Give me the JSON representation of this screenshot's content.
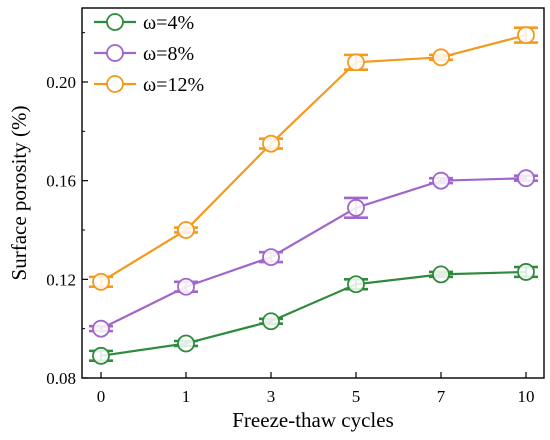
{
  "chart_data": {
    "type": "line",
    "xlabel": "Freeze-thaw cycles",
    "ylabel": "Surface porosity (%)",
    "categories": [
      "0",
      "1",
      "3",
      "5",
      "7",
      "10"
    ],
    "ylim": [
      0.08,
      0.23
    ],
    "yticks": [
      "0.08",
      "0.12",
      "0.16",
      "0.20"
    ],
    "grid": false,
    "legend_position": "top-left",
    "series": [
      {
        "name": "ω=4%",
        "color": "#2e8b3e",
        "values": [
          0.089,
          0.094,
          0.103,
          0.118,
          0.122,
          0.123
        ],
        "errors": [
          0.002,
          0.001,
          0.001,
          0.002,
          0.001,
          0.002
        ]
      },
      {
        "name": "ω=8%",
        "color": "#a066cc",
        "values": [
          0.1,
          0.117,
          0.129,
          0.149,
          0.16,
          0.161
        ],
        "errors": [
          0.001,
          0.002,
          0.002,
          0.004,
          0.001,
          0.001
        ]
      },
      {
        "name": "ω=12%",
        "color": "#f39a1d",
        "values": [
          0.119,
          0.14,
          0.175,
          0.208,
          0.21,
          0.219
        ],
        "errors": [
          0.002,
          0.001,
          0.002,
          0.003,
          0.001,
          0.003
        ]
      }
    ]
  }
}
